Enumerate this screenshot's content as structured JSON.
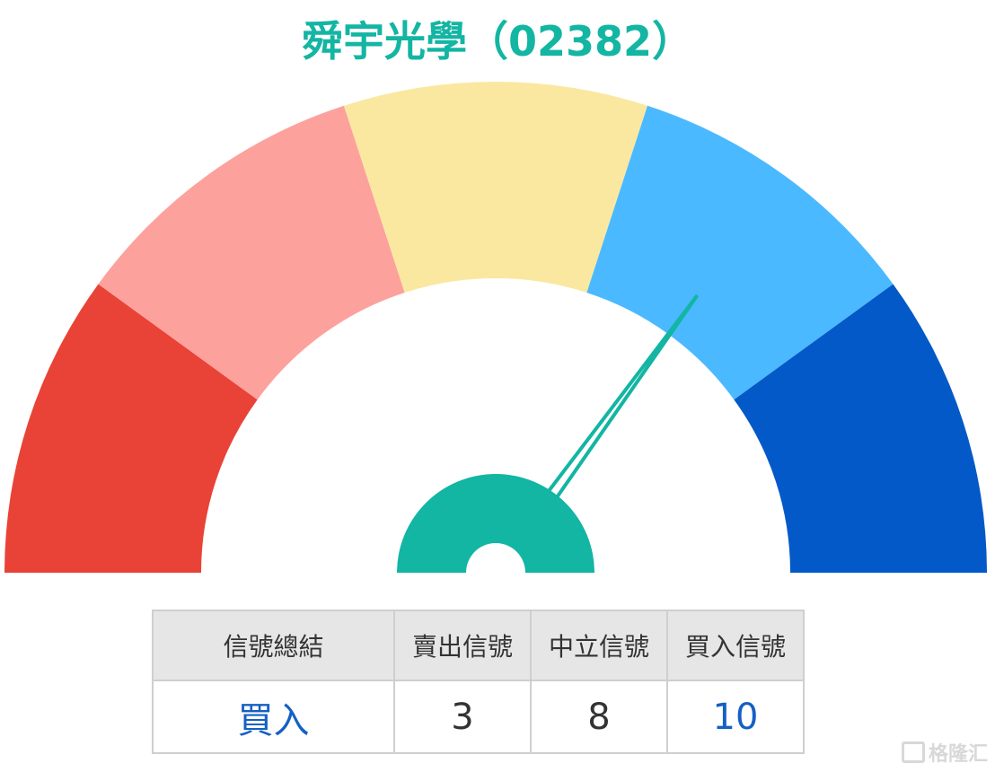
{
  "chart_data": {
    "type": "gauge",
    "title": "舜宇光學（02382）",
    "scale": [
      0,
      100
    ],
    "needle_value": 70,
    "bands": [
      {
        "from": 0,
        "to": 20,
        "color": "#E84336"
      },
      {
        "from": 20,
        "to": 40,
        "color": "#FDA19D"
      },
      {
        "from": 40,
        "to": 60,
        "color": "#FAE8A0"
      },
      {
        "from": 60,
        "to": 80,
        "color": "#4BB9FF"
      },
      {
        "from": 80,
        "to": 100,
        "color": "#0359C8"
      }
    ],
    "needle_color": "#13B5A3"
  },
  "table": {
    "headers": [
      "信號總結",
      "賣出信號",
      "中立信號",
      "買入信號"
    ],
    "values": [
      "買入",
      "3",
      "8",
      "10"
    ]
  },
  "watermark": "格隆汇"
}
